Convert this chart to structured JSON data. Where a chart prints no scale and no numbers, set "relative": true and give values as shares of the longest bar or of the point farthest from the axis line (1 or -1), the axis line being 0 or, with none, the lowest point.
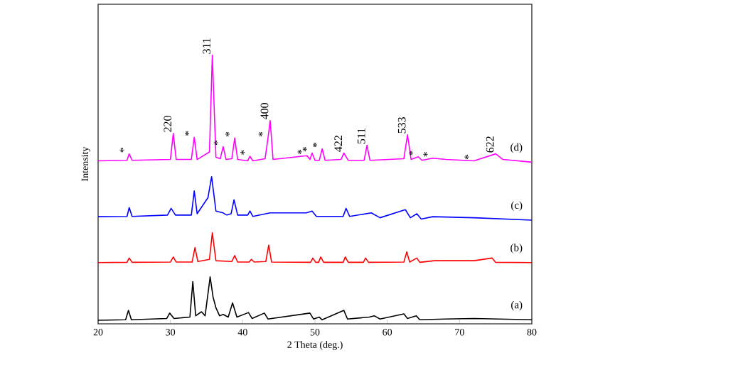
{
  "chart_data": {
    "type": "line",
    "relative": true,
    "xlabel": "2 Theta (deg.)",
    "ylabel": "Intensity",
    "xlim": [
      20,
      80
    ],
    "xticks": [
      20,
      30,
      40,
      50,
      60,
      70,
      80
    ],
    "grid": false,
    "legend": false,
    "marker": "none",
    "line_style": "solid",
    "series": [
      {
        "name": "(a)",
        "color": "#000000",
        "x": [
          20,
          23.8,
          24.2,
          24.6,
          29.5,
          29.9,
          30.5,
          32.7,
          33.1,
          33.5,
          34.3,
          34.8,
          35.5,
          35.9,
          36.3,
          36.8,
          37.3,
          38.0,
          38.6,
          39.2,
          40.8,
          41.3,
          43.0,
          43.5,
          49.3,
          49.8,
          50.6,
          51.0,
          54.0,
          54.5,
          57.5,
          58.2,
          59.0,
          62.3,
          62.8,
          64.0,
          64.5,
          68.0,
          72.0,
          80
        ],
        "values": [
          0.013,
          0.015,
          0.05,
          0.015,
          0.02,
          0.04,
          0.02,
          0.025,
          0.157,
          0.03,
          0.045,
          0.03,
          0.175,
          0.1,
          0.06,
          0.03,
          0.035,
          0.025,
          0.078,
          0.025,
          0.042,
          0.02,
          0.04,
          0.018,
          0.04,
          0.018,
          0.025,
          0.015,
          0.05,
          0.018,
          0.025,
          0.03,
          0.018,
          0.037,
          0.02,
          0.03,
          0.015,
          0.018,
          0.02,
          0.015
        ]
      },
      {
        "name": "(b)",
        "color": "#ff0000",
        "x": [
          20,
          24.0,
          24.3,
          24.7,
          30.0,
          30.4,
          30.8,
          33.0,
          33.4,
          33.8,
          35.4,
          35.8,
          36.3,
          38.5,
          38.9,
          39.3,
          40.9,
          41.2,
          41.6,
          43.2,
          43.6,
          44.0,
          49.4,
          49.7,
          50.1,
          50.5,
          50.8,
          51.2,
          53.9,
          54.2,
          54.6,
          56.7,
          57.0,
          57.4,
          62.3,
          62.7,
          63.1,
          64.1,
          64.5,
          66.5,
          72.0,
          74.5,
          75.0,
          80
        ],
        "values": [
          0.228,
          0.229,
          0.245,
          0.229,
          0.23,
          0.249,
          0.23,
          0.23,
          0.284,
          0.232,
          0.24,
          0.339,
          0.235,
          0.232,
          0.254,
          0.23,
          0.23,
          0.24,
          0.23,
          0.232,
          0.293,
          0.23,
          0.229,
          0.245,
          0.229,
          0.229,
          0.249,
          0.229,
          0.229,
          0.249,
          0.229,
          0.229,
          0.245,
          0.229,
          0.23,
          0.268,
          0.23,
          0.245,
          0.229,
          0.235,
          0.235,
          0.245,
          0.229,
          0.228
        ]
      },
      {
        "name": "(c)",
        "color": "#0000ff",
        "x": [
          20,
          24.0,
          24.3,
          24.7,
          29.6,
          30.1,
          30.7,
          32.9,
          33.3,
          33.7,
          35.2,
          35.7,
          36.3,
          37.3,
          37.8,
          38.4,
          38.8,
          39.3,
          40.7,
          41.0,
          41.4,
          43.8,
          48.8,
          49.6,
          50.2,
          53.9,
          54.3,
          54.8,
          57.8,
          59.0,
          62.5,
          63.2,
          64.1,
          64.7,
          66.3,
          72.0,
          80
        ],
        "values": [
          0.399,
          0.4,
          0.433,
          0.4,
          0.405,
          0.43,
          0.405,
          0.405,
          0.495,
          0.41,
          0.47,
          0.548,
          0.42,
          0.413,
          0.405,
          0.41,
          0.462,
          0.405,
          0.405,
          0.42,
          0.4,
          0.413,
          0.413,
          0.42,
          0.4,
          0.4,
          0.43,
          0.4,
          0.413,
          0.395,
          0.425,
          0.395,
          0.41,
          0.39,
          0.399,
          0.395,
          0.386
        ]
      },
      {
        "name": "(d)",
        "color": "#ff00ff",
        "x": [
          20,
          24.0,
          24.3,
          24.7,
          30.0,
          30.4,
          30.8,
          32.9,
          33.3,
          33.7,
          35.4,
          35.8,
          36.3,
          36.9,
          37.3,
          37.7,
          38.5,
          38.9,
          39.3,
          40.7,
          41.0,
          41.4,
          43.1,
          43.5,
          43.8,
          44.2,
          48.9,
          49.3,
          49.6,
          50.0,
          50.6,
          51.0,
          51.4,
          53.6,
          54.0,
          54.6,
          56.8,
          57.2,
          57.6,
          62.3,
          62.8,
          63.3,
          64.3,
          64.8,
          66.3,
          68.1,
          72.0,
          75.0,
          76.0,
          80
        ],
        "values": [
          0.607,
          0.609,
          0.633,
          0.609,
          0.612,
          0.709,
          0.612,
          0.612,
          0.695,
          0.612,
          0.64,
          1.0,
          0.62,
          0.615,
          0.66,
          0.612,
          0.615,
          0.692,
          0.612,
          0.607,
          0.624,
          0.607,
          0.615,
          0.692,
          0.757,
          0.612,
          0.626,
          0.612,
          0.636,
          0.609,
          0.609,
          0.652,
          0.609,
          0.612,
          0.636,
          0.609,
          0.609,
          0.665,
          0.609,
          0.615,
          0.704,
          0.612,
          0.622,
          0.609,
          0.617,
          0.612,
          0.607,
          0.633,
          0.612,
          0.602
        ]
      }
    ],
    "annotations": [
      {
        "text": "220",
        "x": 30.4,
        "y": 0.709
      },
      {
        "text": "311",
        "x": 35.8,
        "y": 1.0
      },
      {
        "text": "400",
        "x": 43.8,
        "y": 0.757
      },
      {
        "text": "422",
        "x": 54.0,
        "y": 0.636
      },
      {
        "text": "511",
        "x": 57.2,
        "y": 0.665
      },
      {
        "text": "533",
        "x": 62.8,
        "y": 0.704
      },
      {
        "text": "622",
        "x": 75.0,
        "y": 0.633
      },
      {
        "text": "*",
        "x": 24.3,
        "y": 0.633
      },
      {
        "text": "*",
        "x": 33.3,
        "y": 0.695
      },
      {
        "text": "*",
        "x": 37.3,
        "y": 0.66
      },
      {
        "text": "*",
        "x": 38.9,
        "y": 0.692
      },
      {
        "text": "*",
        "x": 41.0,
        "y": 0.624
      },
      {
        "text": "*",
        "x": 43.5,
        "y": 0.692
      },
      {
        "text": "*",
        "x": 48.9,
        "y": 0.626
      },
      {
        "text": "*",
        "x": 49.6,
        "y": 0.636
      },
      {
        "text": "*",
        "x": 51.0,
        "y": 0.652
      },
      {
        "text": "*",
        "x": 64.3,
        "y": 0.622
      },
      {
        "text": "*",
        "x": 66.3,
        "y": 0.617
      },
      {
        "text": "*",
        "x": 72.0,
        "y": 0.607
      }
    ]
  }
}
